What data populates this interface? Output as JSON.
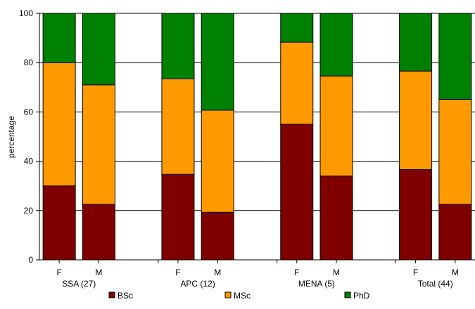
{
  "chart_data": {
    "type": "bar",
    "stacked": true,
    "ylabel": "percentage",
    "ylim": [
      0,
      100
    ],
    "yticks": [
      "0",
      "20",
      "40",
      "60",
      "80",
      "100"
    ],
    "grid": "horizontal",
    "legend_position": "bottom",
    "groups": [
      {
        "label": "SSA (27)",
        "categories": [
          "F",
          "M"
        ]
      },
      {
        "label": "APC (12)",
        "categories": [
          "F",
          "M"
        ]
      },
      {
        "label": "MENA (5)",
        "categories": [
          "F",
          "M"
        ]
      },
      {
        "label": "Total (44)",
        "categories": [
          "F",
          "M"
        ]
      }
    ],
    "categories": [
      "SSA F",
      "SSA M",
      "APC F",
      "APC M",
      "MENA F",
      "MENA M",
      "Total F",
      "Total M"
    ],
    "series": [
      {
        "name": "BSc",
        "color": "#800000",
        "values": [
          30,
          22.5,
          34.7,
          19.3,
          55,
          34,
          36.6,
          22.5
        ]
      },
      {
        "name": "MSc",
        "color": "#ff9900",
        "values": [
          50,
          48.5,
          38.8,
          41.4,
          33.3,
          40.6,
          40,
          42.6
        ]
      },
      {
        "name": "PhD",
        "color": "#008000",
        "values": [
          20,
          29,
          26.5,
          39.3,
          11.7,
          25.4,
          23.4,
          34.9
        ]
      }
    ]
  }
}
